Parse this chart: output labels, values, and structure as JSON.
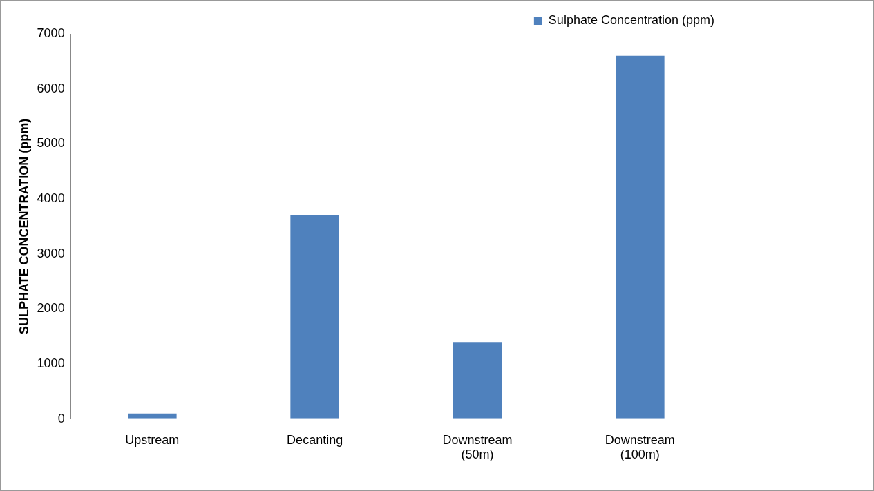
{
  "chart_data": {
    "type": "bar",
    "ylabel": "SULPHATE CONCENTRATION (ppm)",
    "categories": [
      "Upstream",
      "Decanting",
      "Downstream\n(50m)",
      "Downstream\n(100m)"
    ],
    "series": [
      {
        "name": "Sulphate Concentration (ppm)",
        "color": "#4f81bd",
        "values": [
          100,
          3700,
          1400,
          6600
        ]
      }
    ],
    "ylim": [
      0,
      7000
    ],
    "yticks": [
      0,
      1000,
      2000,
      3000,
      4000,
      5000,
      6000,
      7000
    ],
    "grid": false,
    "legend": "top right"
  }
}
